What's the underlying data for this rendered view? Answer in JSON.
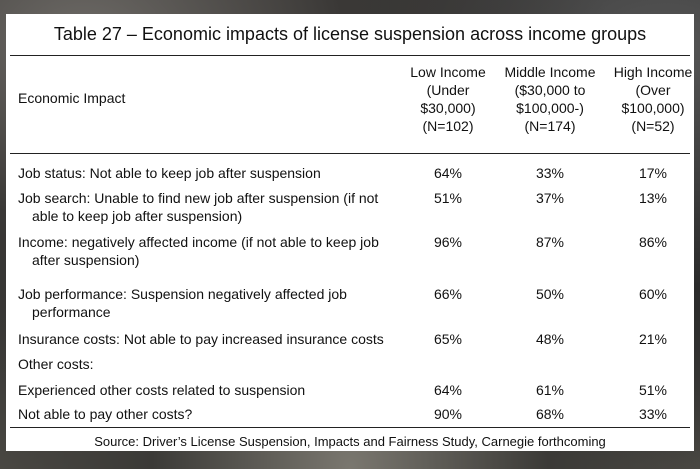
{
  "title": "Table 27 – Economic impacts of license suspension across income groups",
  "header": {
    "impact": "Economic Impact",
    "columns": [
      {
        "lines": [
          "Low Income",
          "(Under",
          "$30,000)",
          "(N=102)"
        ]
      },
      {
        "lines": [
          "Middle Income",
          "($30,000 to",
          "$100,000-)",
          "(N=174)"
        ]
      },
      {
        "lines": [
          "High Income",
          "(Over",
          "$100,000)",
          "(N=52)"
        ]
      }
    ]
  },
  "rows": [
    {
      "label1": "Job status: Not able to keep job after suspension",
      "label2": "",
      "values": [
        "64%",
        "33%",
        "17%"
      ]
    },
    {
      "label1": "Job search: Unable to find new job after suspension (if not",
      "label2": "able to keep job after suspension)",
      "values": [
        "51%",
        "37%",
        "13%"
      ]
    },
    {
      "label1": "Income: negatively affected income (if not able to keep job",
      "label2": "after suspension)",
      "values": [
        "96%",
        "87%",
        "86%"
      ]
    },
    {
      "label1": "Job performance: Suspension negatively affected job",
      "label2": "performance",
      "values": [
        "66%",
        "50%",
        "60%"
      ]
    },
    {
      "label1": "Insurance costs:  Not able to pay increased insurance costs",
      "label2": "",
      "values": [
        "65%",
        "48%",
        "21%"
      ]
    },
    {
      "label1": "Other costs:",
      "label2": "",
      "values": [
        "",
        "",
        ""
      ]
    },
    {
      "label1": "Experienced other costs related to suspension",
      "label2": "",
      "values": [
        "64%",
        "61%",
        "51%"
      ]
    },
    {
      "label1": "Not able to pay other costs?",
      "label2": "",
      "values": [
        "90%",
        "68%",
        "33%"
      ]
    }
  ],
  "source": "Source:  Driver’s License Suspension, Impacts and Fairness Study, Carnegie forthcoming"
}
